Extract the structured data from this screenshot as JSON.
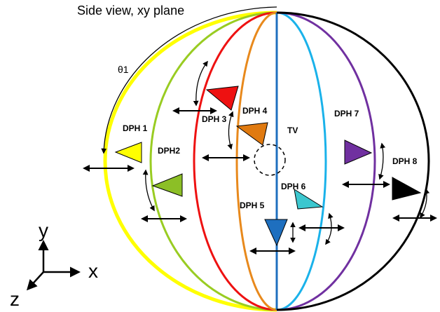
{
  "title": "Side view, xy plane",
  "angle_label": "θ1",
  "labels": [
    "DPH 1",
    "DPH2",
    "DPH 3",
    "DPH 4",
    "DPH 5",
    "DPH 6",
    "DPH 7",
    "DPH 8"
  ],
  "center_label": "TV",
  "axes": {
    "y": "y",
    "x": "x",
    "z": "z"
  }
}
